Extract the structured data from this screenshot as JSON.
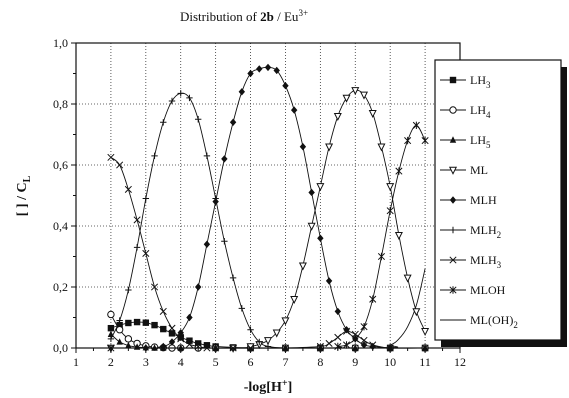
{
  "chart_data": {
    "type": "line",
    "title": "Distribution of 2b / Eu3+",
    "title_parts": {
      "prefix": "Distribution of ",
      "bold": "2b",
      "suffix": " / Eu",
      "sup": "3+"
    },
    "xlabel": "-log[H+]",
    "xlabel_parts": {
      "prefix": "-log[H",
      "sup": "+",
      "suffix": "]"
    },
    "ylabel": "[ ] / CL",
    "ylabel_parts": {
      "main": "[ ] / C",
      "sub": "L"
    },
    "xlim": [
      1,
      12
    ],
    "ylim": [
      0,
      1.0
    ],
    "xticks": [
      "1",
      "2",
      "3",
      "4",
      "5",
      "6",
      "7",
      "8",
      "9",
      "10",
      "11",
      "12"
    ],
    "yticks": [
      "0,0",
      "0,2",
      "0,4",
      "0,6",
      "0,8",
      "1,0"
    ],
    "grid": true,
    "legend_position": "right",
    "series": [
      {
        "name": "LH3",
        "name_main": "LH",
        "name_sub": "3",
        "marker": "square-filled",
        "x": [
          2.0,
          2.25,
          2.5,
          2.75,
          3.0,
          3.25,
          3.5,
          3.75,
          4.0,
          4.25,
          4.5,
          4.75,
          5.0,
          5.5,
          6.0,
          7.0,
          8.0,
          9.0,
          10.0,
          11.0
        ],
        "y": [
          0.065,
          0.075,
          0.082,
          0.085,
          0.083,
          0.075,
          0.062,
          0.048,
          0.035,
          0.024,
          0.015,
          0.009,
          0.005,
          0.002,
          0.0,
          0.0,
          0.0,
          0.0,
          0.0,
          0.0
        ]
      },
      {
        "name": "LH4",
        "name_main": "LH",
        "name_sub": "4",
        "marker": "circle-open",
        "x": [
          2.0,
          2.25,
          2.5,
          2.75,
          3.0,
          3.25,
          3.5,
          3.75,
          4.0,
          4.5,
          5.0,
          6.0,
          7.0,
          8.0,
          9.0,
          10.0,
          11.0
        ],
        "y": [
          0.11,
          0.06,
          0.03,
          0.015,
          0.007,
          0.003,
          0.001,
          0.0,
          0.0,
          0.0,
          0.0,
          0.0,
          0.0,
          0.0,
          0.0,
          0.0,
          0.0
        ]
      },
      {
        "name": "LH5",
        "name_main": "LH",
        "name_sub": "5",
        "marker": "triangle-filled",
        "x": [
          2.0,
          2.25,
          2.5,
          2.75,
          3.0,
          3.25,
          3.5,
          4.0,
          5.0,
          6.0,
          7.0,
          8.0,
          9.0,
          10.0,
          11.0
        ],
        "y": [
          0.045,
          0.02,
          0.008,
          0.003,
          0.001,
          0.0,
          0.0,
          0.0,
          0.0,
          0.0,
          0.0,
          0.0,
          0.0,
          0.0,
          0.0
        ]
      },
      {
        "name": "ML",
        "name_main": "ML",
        "name_sub": "",
        "marker": "triangle-down-open",
        "x": [
          2.0,
          5.5,
          6.0,
          6.25,
          6.5,
          6.75,
          7.0,
          7.25,
          7.5,
          7.75,
          8.0,
          8.25,
          8.5,
          8.75,
          9.0,
          9.25,
          9.5,
          9.75,
          10.0,
          10.25,
          10.5,
          10.75,
          11.0
        ],
        "y": [
          0.0,
          0.0,
          0.005,
          0.012,
          0.025,
          0.05,
          0.09,
          0.16,
          0.27,
          0.4,
          0.53,
          0.66,
          0.76,
          0.82,
          0.845,
          0.83,
          0.77,
          0.66,
          0.53,
          0.37,
          0.23,
          0.12,
          0.055
        ]
      },
      {
        "name": "MLH",
        "name_main": "MLH",
        "name_sub": "",
        "marker": "diamond-filled",
        "x": [
          3.0,
          3.5,
          3.75,
          4.0,
          4.25,
          4.5,
          4.75,
          5.0,
          5.25,
          5.5,
          5.75,
          6.0,
          6.25,
          6.5,
          6.75,
          7.0,
          7.25,
          7.5,
          7.75,
          8.0,
          8.25,
          8.5,
          8.75,
          9.0,
          9.25,
          9.5,
          10.0
        ],
        "y": [
          0.0,
          0.005,
          0.02,
          0.05,
          0.1,
          0.2,
          0.34,
          0.48,
          0.62,
          0.74,
          0.84,
          0.9,
          0.915,
          0.92,
          0.91,
          0.86,
          0.78,
          0.66,
          0.51,
          0.36,
          0.22,
          0.12,
          0.06,
          0.03,
          0.01,
          0.005,
          0.0
        ]
      },
      {
        "name": "MLH2",
        "name_main": "MLH",
        "name_sub": "2",
        "marker": "plus",
        "x": [
          2.0,
          2.25,
          2.5,
          2.75,
          3.0,
          3.25,
          3.5,
          3.75,
          4.0,
          4.25,
          4.5,
          4.75,
          5.0,
          5.25,
          5.5,
          5.75,
          6.0,
          6.25,
          6.5,
          7.0,
          8.0
        ],
        "y": [
          0.03,
          0.09,
          0.19,
          0.33,
          0.49,
          0.63,
          0.74,
          0.81,
          0.835,
          0.82,
          0.75,
          0.63,
          0.49,
          0.35,
          0.23,
          0.13,
          0.06,
          0.02,
          0.005,
          0.0,
          0.0
        ]
      },
      {
        "name": "MLH3",
        "name_main": "MLH",
        "name_sub": "3",
        "marker": "cross",
        "x": [
          2.0,
          2.25,
          2.5,
          2.75,
          3.0,
          3.25,
          3.5,
          3.75,
          4.0,
          4.25,
          4.5,
          4.75,
          5.0,
          5.5,
          6.0,
          7.0,
          8.0,
          8.25,
          8.5,
          8.75,
          9.0,
          9.25,
          9.5,
          10.0,
          11.0
        ],
        "y": [
          0.625,
          0.6,
          0.52,
          0.42,
          0.31,
          0.2,
          0.12,
          0.065,
          0.03,
          0.012,
          0.005,
          0.0,
          0.0,
          0.0,
          0.0,
          0.0,
          0.005,
          0.015,
          0.035,
          0.055,
          0.045,
          0.025,
          0.01,
          0.0,
          0.0
        ]
      },
      {
        "name": "MLOH",
        "name_main": "MLOH",
        "name_sub": "",
        "marker": "asterisk",
        "x": [
          2.0,
          8.0,
          8.5,
          8.75,
          9.0,
          9.25,
          9.5,
          9.75,
          10.0,
          10.25,
          10.5,
          10.75,
          11.0
        ],
        "y": [
          0.0,
          0.0,
          0.005,
          0.01,
          0.03,
          0.07,
          0.16,
          0.3,
          0.45,
          0.58,
          0.68,
          0.73,
          0.68
        ]
      },
      {
        "name": "ML(OH)2",
        "name_main": "ML(OH)",
        "name_sub": "2",
        "marker": "none",
        "x": [
          2.0,
          9.5,
          10.0,
          10.25,
          10.5,
          10.75,
          11.0
        ],
        "y": [
          0.0,
          0.0,
          0.01,
          0.03,
          0.07,
          0.14,
          0.26
        ]
      }
    ]
  }
}
